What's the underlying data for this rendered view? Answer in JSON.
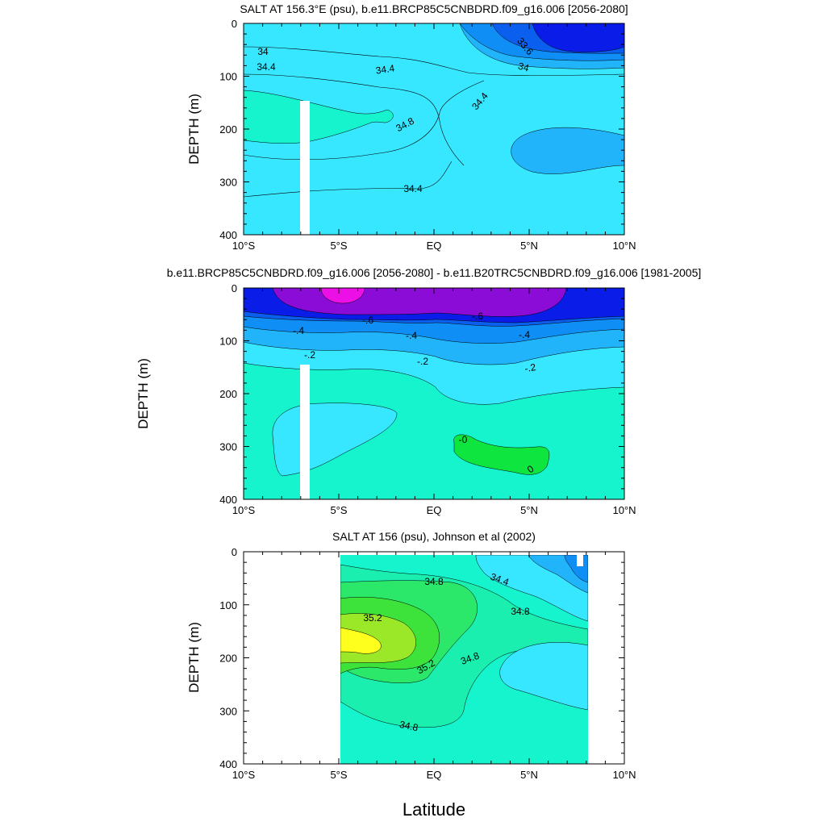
{
  "x_title": "Latitude",
  "chart_data": [
    {
      "type": "contour",
      "title": "SALT AT 156.3°E (psu), b.e11.BRCP85C5CNBDRD.f09_g16.006 [2056-2080]",
      "ylabel": "DEPTH (m)",
      "xlim": [
        -10,
        10
      ],
      "ylim": [
        0,
        400
      ],
      "y_reversed": true,
      "x_tick_labels": [
        "10°S",
        "5°S",
        "EQ",
        "5°N",
        "10°N"
      ],
      "y_tick_labels": [
        "0",
        "100",
        "200",
        "300",
        "400"
      ],
      "contour_labels": [
        "34",
        "34.4",
        "34.4",
        "34.4",
        "34.8",
        "34.4",
        "33.6",
        "34"
      ],
      "fill_colors": [
        "#0a1de8",
        "#0b5fee",
        "#0f8ff6",
        "#21b4fb",
        "#37e7ff",
        "#16f4ce"
      ],
      "masked_column": {
        "lat": [
          -3.2,
          -2.7
        ],
        "depth": [
          148,
          400
        ]
      }
    },
    {
      "type": "contour",
      "title": "b.e11.BRCP85C5CNBDRD.f09_g16.006 [2056-2080] - b.e11.B20TRC5CNBDRD.f09_g16.006 [1981-2005]",
      "ylabel": "DEPTH (m)",
      "xlim": [
        -10,
        10
      ],
      "ylim": [
        0,
        400
      ],
      "y_reversed": true,
      "x_tick_labels": [
        "10°S",
        "5°S",
        "EQ",
        "5°N",
        "10°N"
      ],
      "y_tick_labels": [
        "0",
        "100",
        "200",
        "300",
        "400"
      ],
      "contour_labels": [
        "-.6",
        "-.6",
        "-.4",
        "-.4",
        "-.4",
        "-.2",
        "-.2",
        "-.2",
        "-0",
        "0"
      ],
      "fill_colors": [
        "#ec0fe6",
        "#8c0cd7",
        "#0a1de8",
        "#0b5fee",
        "#0f8ff6",
        "#21b4fb",
        "#37e7ff",
        "#16f4ce",
        "#0ee63f"
      ],
      "masked_column": {
        "lat": [
          -3.2,
          -2.7
        ],
        "depth": [
          148,
          400
        ]
      }
    },
    {
      "type": "contour",
      "title": "SALT AT 156 (psu), Johnson et al (2002)",
      "ylabel": "DEPTH (m)",
      "xlim": [
        -10,
        10
      ],
      "ylim": [
        0,
        400
      ],
      "y_reversed": true,
      "x_tick_labels": [
        "10°S",
        "5°S",
        "EQ",
        "5°N",
        "10°N"
      ],
      "y_tick_labels": [
        "0",
        "100",
        "200",
        "300",
        "400"
      ],
      "contour_labels": [
        "34.8",
        "34.4",
        "35.2",
        "34.8",
        "35.2",
        "34.8",
        "34.8"
      ],
      "fill_colors": [
        "#21b4fb",
        "#37e7ff",
        "#16f4ce",
        "#1aefb0",
        "#2ce86a",
        "#3de33b",
        "#9ae827",
        "#ffff1e"
      ],
      "data_extent_lat": [
        -5,
        8
      ]
    }
  ]
}
